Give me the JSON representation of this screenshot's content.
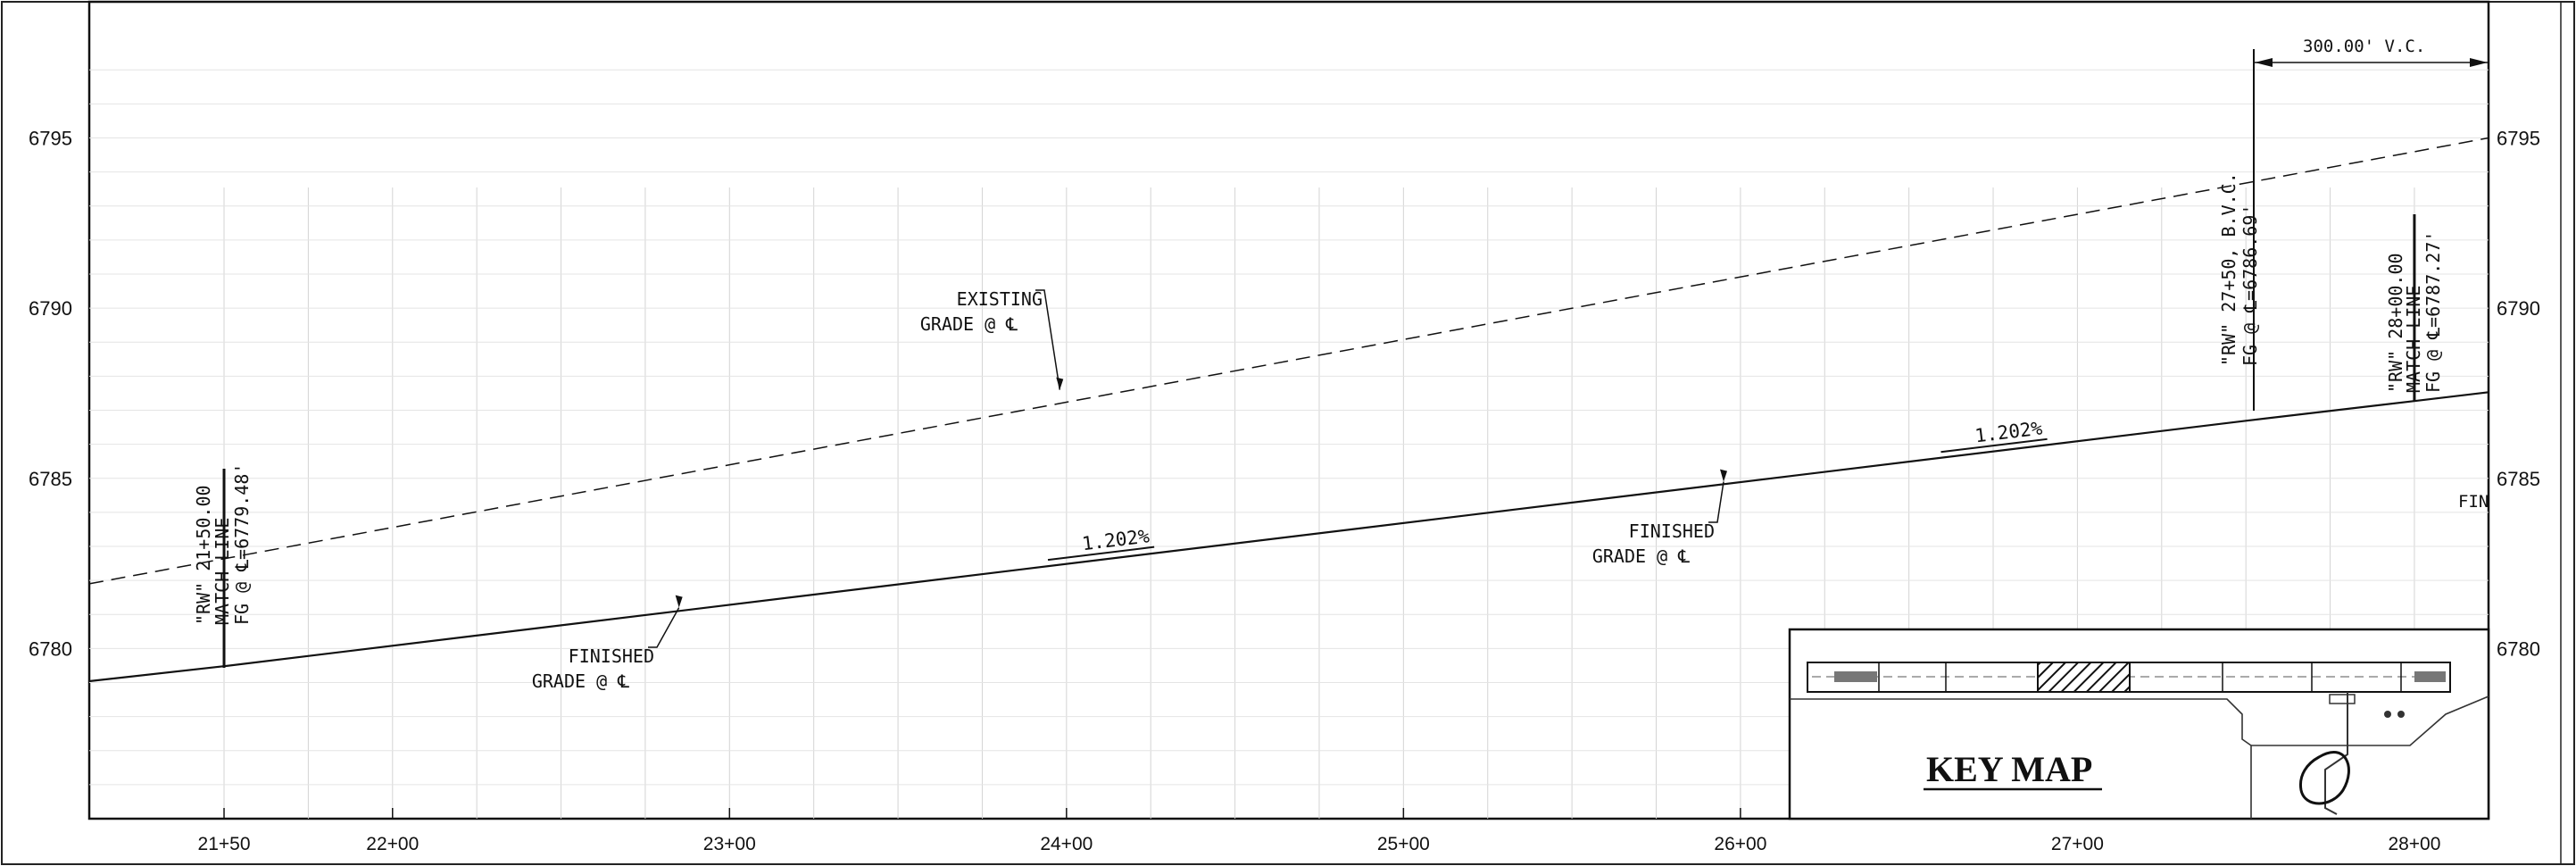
{
  "chart_data": {
    "type": "line",
    "x_range": [
      2110,
      2822
    ],
    "y_range": [
      6775,
      6799
    ],
    "x_ticks": [
      {
        "sta": 2150,
        "label": "21+50"
      },
      {
        "sta": 2200,
        "label": "22+00"
      },
      {
        "sta": 2300,
        "label": "23+00"
      },
      {
        "sta": 2400,
        "label": "24+00"
      },
      {
        "sta": 2500,
        "label": "25+00"
      },
      {
        "sta": 2600,
        "label": "26+00"
      },
      {
        "sta": 2700,
        "label": "27+00"
      },
      {
        "sta": 2800,
        "label": "28+00"
      }
    ],
    "y_ticks": [
      {
        "value": 6780,
        "label": "6780"
      },
      {
        "value": 6785,
        "label": "6785"
      },
      {
        "value": 6790,
        "label": "6790"
      },
      {
        "value": 6795,
        "label": "6795"
      }
    ],
    "series": [
      {
        "role": "finished-grade",
        "points": [
          [
            2110,
            6779.04
          ],
          [
            2150,
            6779.48
          ],
          [
            2750,
            6786.69
          ],
          [
            2800,
            6787.27
          ],
          [
            2822,
            6787.53
          ]
        ]
      },
      {
        "role": "existing-grade",
        "points": [
          [
            2110,
            6781.9
          ],
          [
            2822,
            6795.0
          ]
        ]
      }
    ],
    "grade_labels": [
      {
        "text": "1.202%",
        "sta": 2415,
        "elev": 6782.85
      },
      {
        "text": "1.202%",
        "sta": 2680,
        "elev": 6786.02
      }
    ],
    "callouts": [
      {
        "lines": [
          "EXISTING",
          "GRADE @ ℄"
        ],
        "sta": 2398,
        "elev": 6787.6
      },
      {
        "lines": [
          "FINISHED",
          "GRADE @ ℄"
        ],
        "sta": 2285,
        "elev": 6781.2
      },
      {
        "lines": [
          "FINISHED",
          "GRADE @ ℄"
        ],
        "sta": 2595,
        "elev": 6784.9
      }
    ],
    "station_notes": [
      {
        "sta": 2150,
        "lines": [
          "\"RW\" 21+50.00",
          "MATCH LINE",
          "FG @ ℄=6779.48'"
        ]
      },
      {
        "sta": 2750,
        "lines": [
          "\"RW\" 27+50, B.V.C.",
          "FG @ ℄=6786.69'"
        ]
      },
      {
        "sta": 2800,
        "lines": [
          "\"RW\" 28+00.00",
          "MATCH LINE",
          "FG @ ℄=6787.27'"
        ]
      }
    ],
    "vertical_curve_label": "300.00' V.C.",
    "edge_text": "FIN",
    "grid": true
  },
  "key_map": {
    "title": "KEY MAP"
  }
}
